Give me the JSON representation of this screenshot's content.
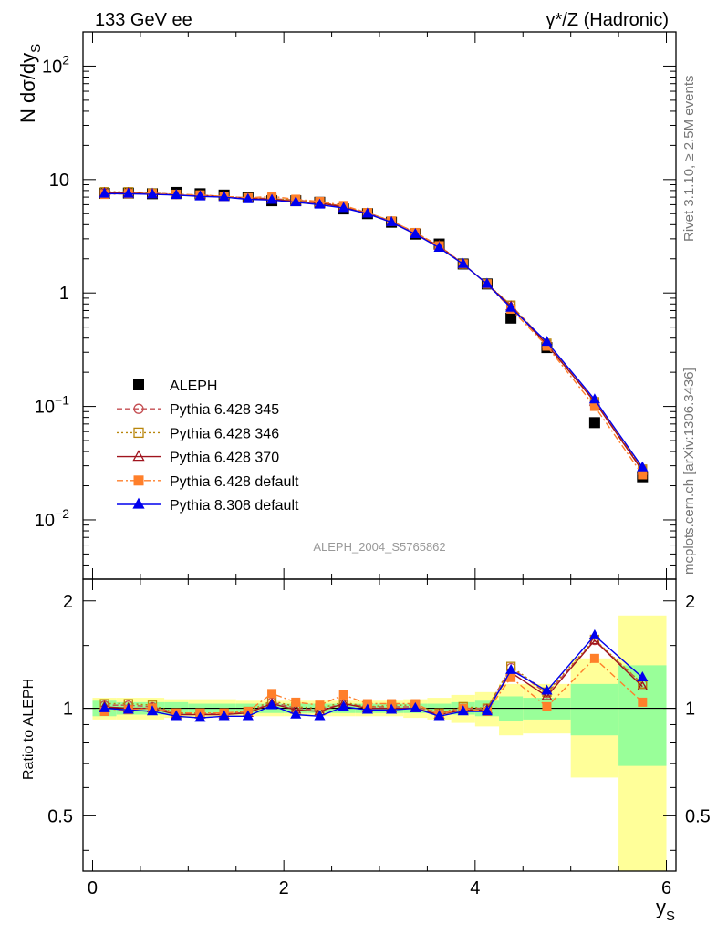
{
  "header": {
    "left_title": "133 GeV ee",
    "right_title": "γ*/Z (Hadronic)"
  },
  "side_text": {
    "rivet": "Rivet 3.1.10, ≥ 2.5M events",
    "mcplots": "mcplots.cern.ch [arXiv:1306.3436]"
  },
  "analysis_id": "ALEPH_2004_S5765862",
  "axes": {
    "ylabel_main": "N dσ/dy",
    "ylabel_main_sub": "S",
    "ylabel_ratio": "Ratio to ALEPH",
    "xlabel": "y",
    "xlabel_sub": "S",
    "main_yticks": [
      {
        "value": 0.01,
        "base": "10",
        "exp": "−2"
      },
      {
        "value": 0.1,
        "base": "10",
        "exp": "−1"
      },
      {
        "value": 1,
        "base": "1",
        "exp": ""
      },
      {
        "value": 10,
        "base": "10",
        "exp": ""
      },
      {
        "value": 100,
        "base": "10",
        "exp": "2"
      }
    ],
    "ratio_yticks": [
      {
        "value": 0.5,
        "label": "0.5"
      },
      {
        "value": 1,
        "label": "1"
      },
      {
        "value": 2,
        "label": "2"
      }
    ],
    "xticks": [
      {
        "value": 0,
        "label": "0"
      },
      {
        "value": 2,
        "label": "2"
      },
      {
        "value": 4,
        "label": "4"
      },
      {
        "value": 6,
        "label": "6"
      }
    ]
  },
  "legend": [
    {
      "label": "ALEPH",
      "color": "#000000",
      "marker": "filled-square",
      "line": "none"
    },
    {
      "label": "Pythia 6.428 345",
      "color": "#c44e52",
      "marker": "open-circle",
      "line": "dashed"
    },
    {
      "label": "Pythia 6.428 346",
      "color": "#b8860b",
      "marker": "open-square",
      "line": "dotted"
    },
    {
      "label": "Pythia 6.428 370",
      "color": "#a0141e",
      "marker": "open-triangle",
      "line": "solid"
    },
    {
      "label": "Pythia 6.428 default",
      "color": "#ff7f2a",
      "marker": "filled-square",
      "line": "dashdot"
    },
    {
      "label": "Pythia 8.308 default",
      "color": "#0000ee",
      "marker": "filled-triangle",
      "line": "solid"
    }
  ],
  "chart_data": {
    "type": "scatter",
    "title": "133 GeV ee",
    "xlabel": "y_S",
    "ylabel": "N dσ/dy_S",
    "ratio_ylabel": "Ratio to ALEPH",
    "xlim": [
      -0.1,
      6.1
    ],
    "ylim": [
      0.003,
      200
    ],
    "ratio_ylim": [
      0.35,
      2.3
    ],
    "y_scale": "log",
    "ratio_y_scale": "log",
    "legend_position": "lower-left",
    "x": [
      0.125,
      0.375,
      0.625,
      0.875,
      1.125,
      1.375,
      1.625,
      1.875,
      2.125,
      2.375,
      2.625,
      2.875,
      3.125,
      3.375,
      3.625,
      3.875,
      4.125,
      4.375,
      4.75,
      5.25,
      5.75
    ],
    "series": [
      {
        "name": "ALEPH",
        "values": [
          7.55,
          7.6,
          7.5,
          7.7,
          7.5,
          7.3,
          7.0,
          6.5,
          6.5,
          6.3,
          5.5,
          5.0,
          4.2,
          3.3,
          2.7,
          1.8,
          1.2,
          0.6,
          0.33,
          0.072,
          0.024
        ]
      },
      {
        "name": "Pythia 6.428 345",
        "values": [
          7.7,
          7.7,
          7.6,
          7.4,
          7.3,
          7.1,
          6.9,
          6.8,
          6.6,
          6.3,
          5.8,
          5.1,
          4.3,
          3.4,
          2.6,
          1.8,
          1.2,
          0.78,
          0.36,
          0.11,
          0.028
        ]
      },
      {
        "name": "Pythia 6.428 346",
        "values": [
          7.8,
          7.8,
          7.6,
          7.4,
          7.3,
          7.1,
          6.9,
          6.8,
          6.6,
          6.3,
          5.8,
          5.1,
          4.3,
          3.4,
          2.6,
          1.8,
          1.2,
          0.78,
          0.36,
          0.11,
          0.028
        ]
      },
      {
        "name": "Pythia 6.428 370",
        "values": [
          7.6,
          7.6,
          7.5,
          7.3,
          7.2,
          7.0,
          6.8,
          6.7,
          6.4,
          6.2,
          5.7,
          5.0,
          4.2,
          3.3,
          2.6,
          1.8,
          1.2,
          0.76,
          0.35,
          0.11,
          0.027
        ]
      },
      {
        "name": "Pythia 6.428 default",
        "values": [
          7.4,
          7.5,
          7.5,
          7.4,
          7.3,
          7.1,
          6.9,
          7.1,
          6.7,
          6.4,
          5.9,
          5.1,
          4.3,
          3.4,
          2.6,
          1.8,
          1.2,
          0.72,
          0.34,
          0.1,
          0.025
        ]
      },
      {
        "name": "Pythia 8.308 default",
        "values": [
          7.5,
          7.5,
          7.4,
          7.3,
          7.1,
          7.0,
          6.7,
          6.6,
          6.3,
          6.0,
          5.6,
          5.0,
          4.2,
          3.3,
          2.5,
          1.8,
          1.2,
          0.74,
          0.37,
          0.115,
          0.029
        ]
      }
    ],
    "ratio_series": [
      {
        "name": "Pythia 6.428 345",
        "values": [
          1.02,
          1.02,
          1.01,
          0.97,
          0.96,
          0.97,
          0.97,
          1.04,
          1.0,
          0.99,
          1.03,
          1.01,
          1.01,
          1.01,
          0.97,
          1.0,
          1.0,
          1.3,
          1.1,
          1.55,
          1.17
        ]
      },
      {
        "name": "Pythia 6.428 346",
        "values": [
          1.03,
          1.03,
          1.02,
          0.97,
          0.97,
          0.97,
          0.98,
          1.05,
          1.01,
          1.0,
          1.04,
          1.01,
          1.02,
          1.02,
          0.97,
          1.01,
          1.0,
          1.31,
          1.11,
          1.56,
          1.17
        ]
      },
      {
        "name": "Pythia 6.428 370",
        "values": [
          1.01,
          1.0,
          1.0,
          0.96,
          0.96,
          0.96,
          0.97,
          1.03,
          0.99,
          0.98,
          1.03,
          1.0,
          1.0,
          1.0,
          0.96,
          0.99,
          0.99,
          1.26,
          1.08,
          1.55,
          1.15
        ]
      },
      {
        "name": "Pythia 6.428 default",
        "values": [
          0.98,
          0.99,
          1.0,
          0.97,
          0.97,
          0.97,
          0.98,
          1.1,
          1.04,
          1.02,
          1.09,
          1.03,
          1.03,
          1.03,
          0.96,
          1.0,
          0.98,
          1.22,
          1.01,
          1.38,
          1.04
        ]
      },
      {
        "name": "Pythia 8.308 default",
        "values": [
          1.0,
          0.99,
          0.98,
          0.95,
          0.94,
          0.95,
          0.95,
          1.02,
          0.96,
          0.95,
          1.01,
          0.99,
          0.99,
          1.0,
          0.95,
          0.98,
          0.98,
          1.28,
          1.12,
          1.6,
          1.22
        ]
      }
    ],
    "ratio_bands": {
      "bin_edges": [
        0.0,
        0.25,
        0.5,
        0.75,
        1.0,
        1.25,
        1.5,
        1.75,
        2.0,
        2.25,
        2.5,
        2.75,
        3.0,
        3.25,
        3.5,
        3.75,
        4.0,
        4.25,
        4.5,
        5.0,
        5.5,
        6.0
      ],
      "stat_low": [
        0.95,
        0.96,
        0.96,
        0.96,
        0.97,
        0.97,
        0.97,
        0.97,
        0.97,
        0.97,
        0.97,
        0.97,
        0.97,
        0.97,
        0.97,
        0.96,
        0.95,
        0.92,
        0.93,
        0.84,
        0.69
      ],
      "stat_high": [
        1.05,
        1.04,
        1.04,
        1.04,
        1.03,
        1.03,
        1.03,
        1.03,
        1.03,
        1.03,
        1.03,
        1.03,
        1.03,
        1.03,
        1.03,
        1.04,
        1.05,
        1.08,
        1.07,
        1.17,
        1.32
      ],
      "total_low": [
        0.93,
        0.93,
        0.93,
        0.94,
        0.94,
        0.95,
        0.95,
        0.95,
        0.95,
        0.95,
        0.95,
        0.95,
        0.95,
        0.94,
        0.93,
        0.91,
        0.89,
        0.84,
        0.85,
        0.64,
        0.35
      ],
      "total_high": [
        1.07,
        1.07,
        1.07,
        1.06,
        1.06,
        1.06,
        1.05,
        1.05,
        1.05,
        1.05,
        1.05,
        1.05,
        1.05,
        1.06,
        1.07,
        1.09,
        1.11,
        1.17,
        1.17,
        1.38,
        1.82
      ],
      "total_color": "#ffff99",
      "stat_color": "#99ff99"
    }
  }
}
